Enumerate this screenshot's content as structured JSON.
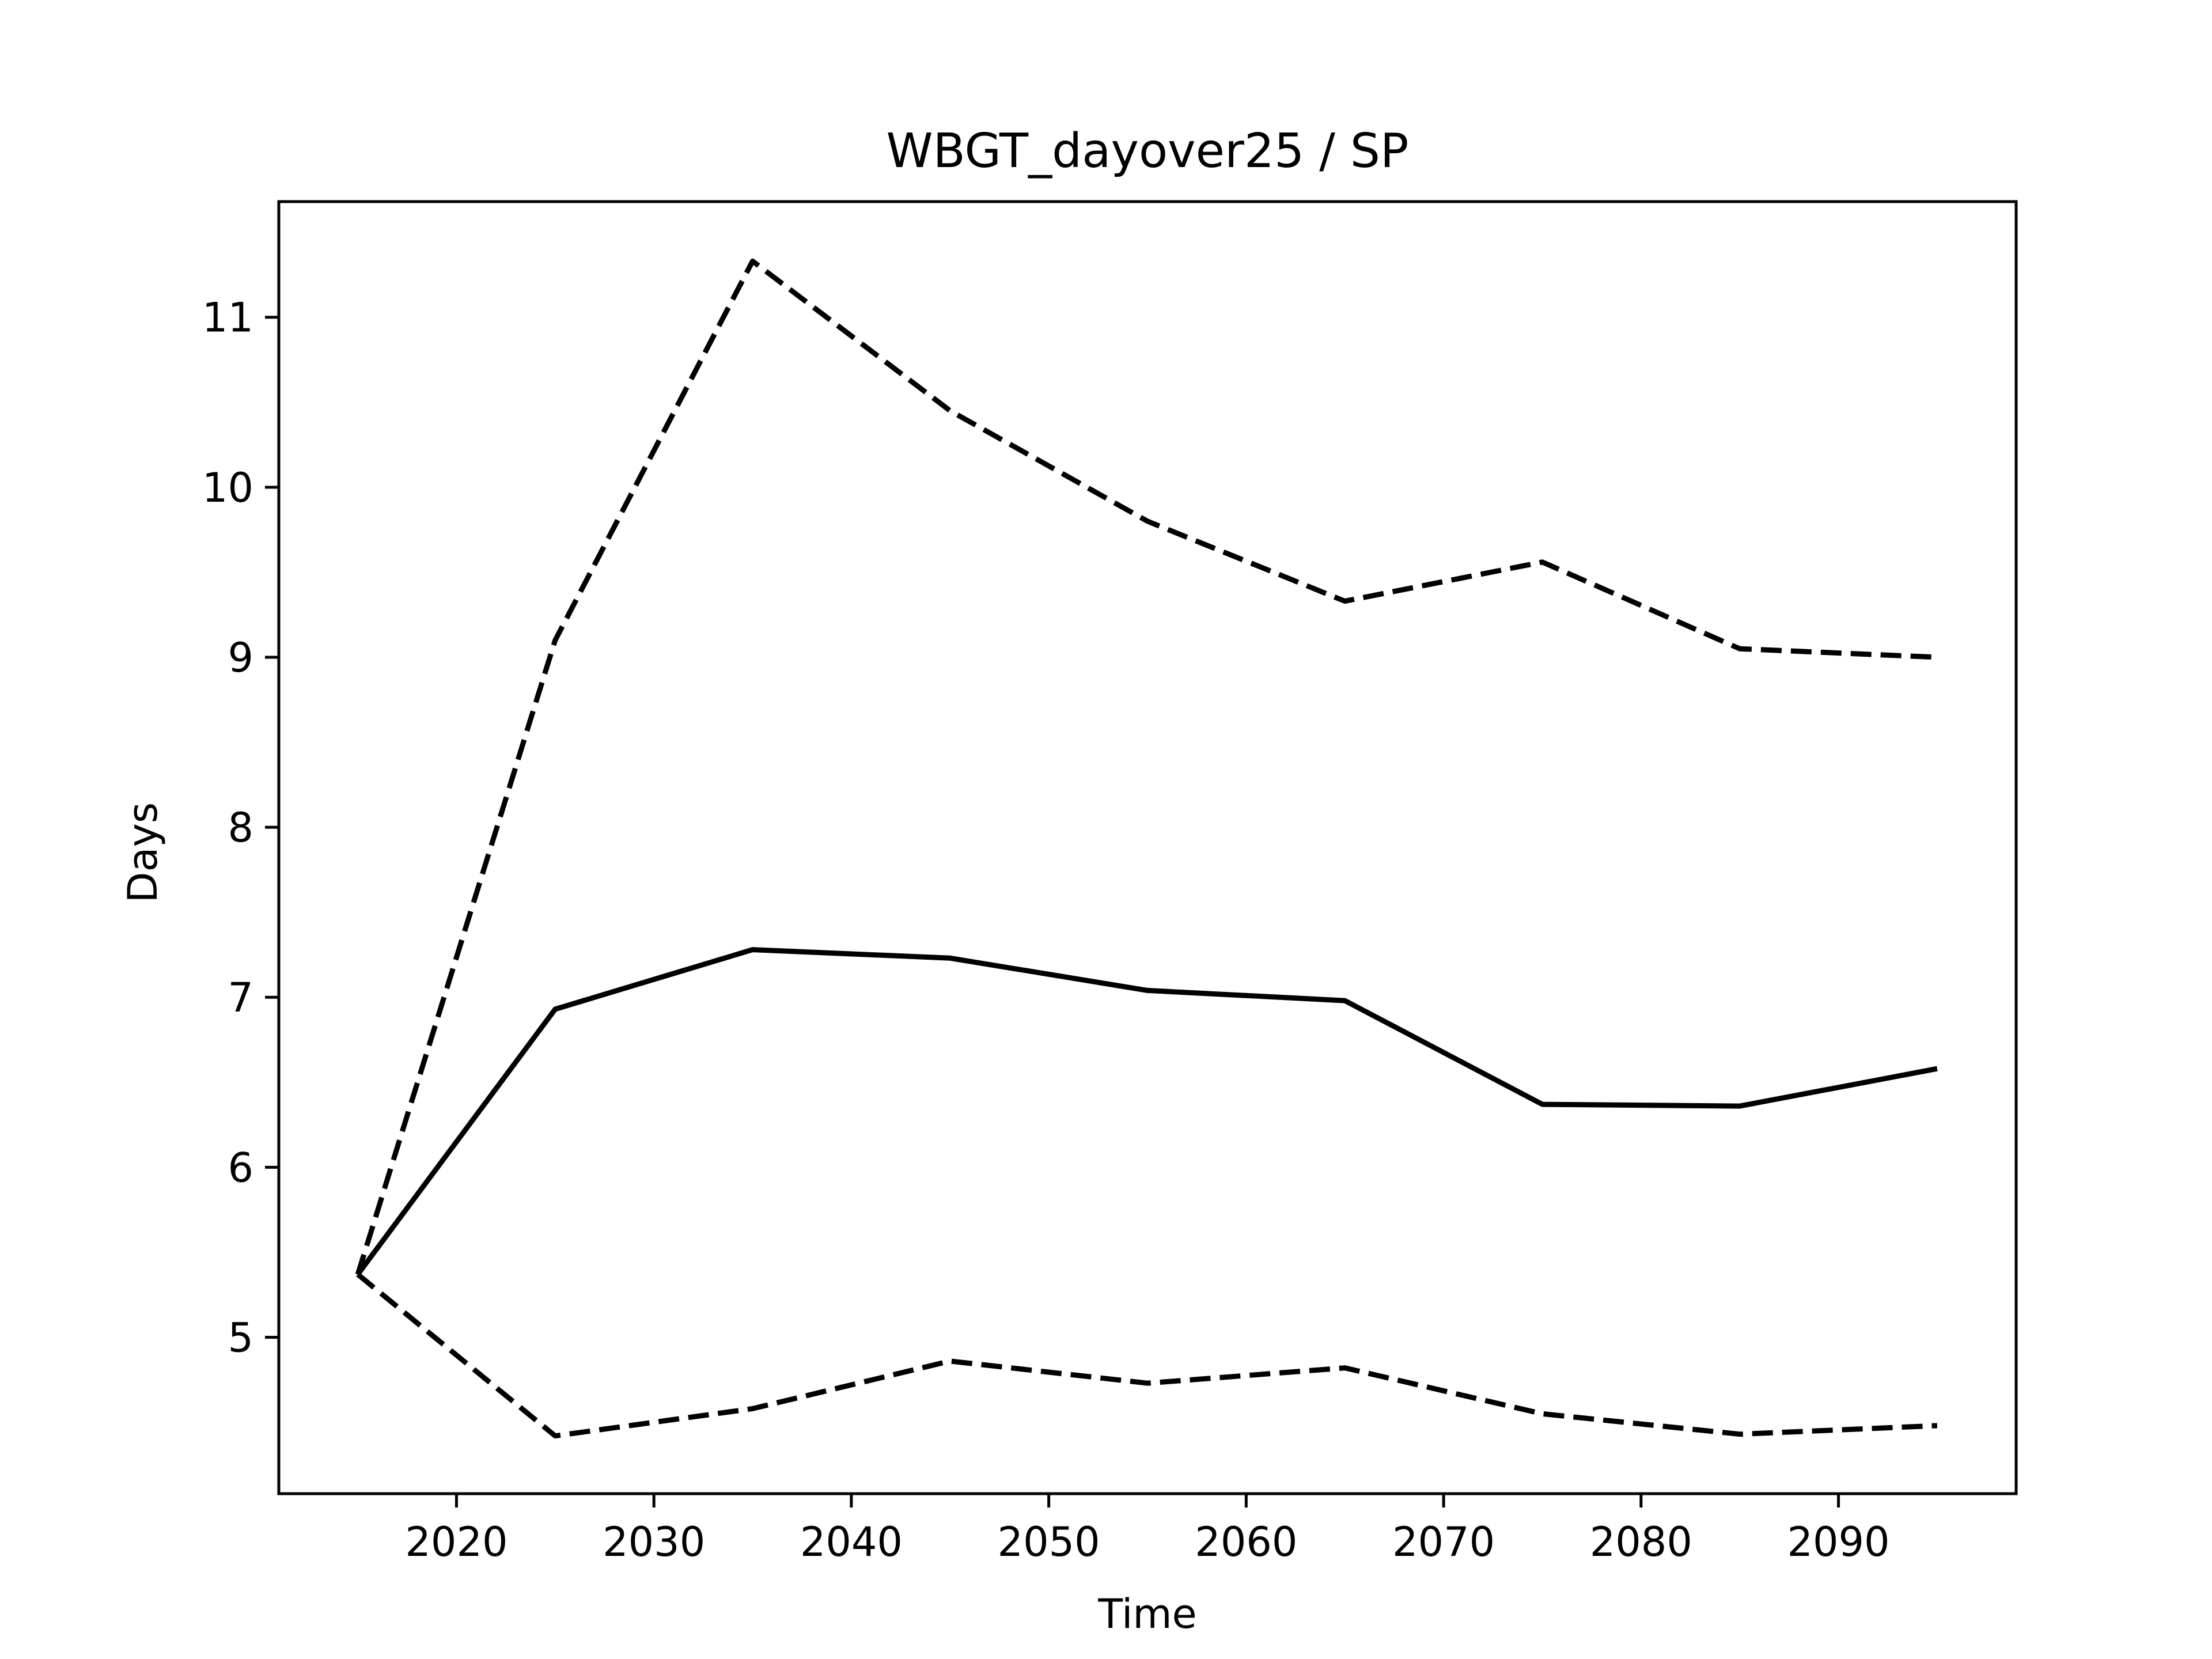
{
  "chart_data": {
    "type": "line",
    "title": "WBGT_dayover25 / SP",
    "xlabel": "Time",
    "ylabel": "Days",
    "x": [
      2015,
      2025,
      2035,
      2045,
      2055,
      2065,
      2075,
      2085,
      2095
    ],
    "series": [
      {
        "style": "solid",
        "values": [
          5.37,
          6.93,
          7.28,
          7.23,
          7.04,
          6.98,
          6.37,
          6.36,
          6.58
        ]
      },
      {
        "style": "dashed",
        "values": [
          5.37,
          9.1,
          11.33,
          10.45,
          9.8,
          9.33,
          9.56,
          9.05,
          9.0
        ]
      },
      {
        "style": "dashed",
        "values": [
          5.37,
          4.42,
          4.58,
          4.86,
          4.73,
          4.82,
          4.55,
          4.43,
          4.48
        ]
      }
    ],
    "xlim": [
      2011,
      2099
    ],
    "ylim": [
      4.08,
      11.68
    ],
    "xticks": [
      "2020",
      "2030",
      "2040",
      "2050",
      "2060",
      "2070",
      "2080",
      "2090"
    ],
    "yticks": [
      "5",
      "6",
      "7",
      "8",
      "9",
      "10",
      "11"
    ],
    "grid": false,
    "line_color": "#000000"
  }
}
